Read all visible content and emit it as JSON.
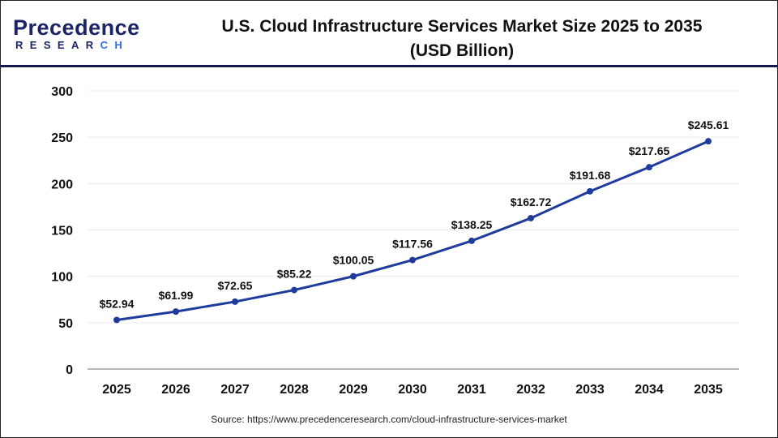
{
  "logo": {
    "main_prefix": "P",
    "main_rest": "recedence",
    "sub_prefix": "RESEAR",
    "sub_suffix": "CH"
  },
  "title_line1": "U.S. Cloud Infrastructure Services Market Size 2025 to 2035",
  "title_line2": "(USD Billion)",
  "source": "Source: https://www.precedenceresearch.com/cloud-infrastructure-services-market",
  "chart_data": {
    "type": "line",
    "title": "U.S. Cloud Infrastructure Services Market Size 2025 to 2035 (USD Billion)",
    "categories": [
      "2025",
      "2026",
      "2027",
      "2028",
      "2029",
      "2030",
      "2031",
      "2032",
      "2033",
      "2034",
      "2035"
    ],
    "values": [
      52.94,
      61.99,
      72.65,
      85.22,
      100.05,
      117.56,
      138.25,
      162.72,
      191.68,
      217.65,
      245.61
    ],
    "data_labels": [
      "$52.94",
      "$61.99",
      "$72.65",
      "$85.22",
      "$100.05",
      "$117.56",
      "$138.25",
      "$162.72",
      "$191.68",
      "$217.65",
      "$245.61"
    ],
    "ylim": [
      0,
      300
    ],
    "yticks": [
      0,
      50,
      100,
      150,
      200,
      250,
      300
    ],
    "grid": true,
    "line_color": "#1f3b9b",
    "xlabel": "",
    "ylabel": ""
  }
}
